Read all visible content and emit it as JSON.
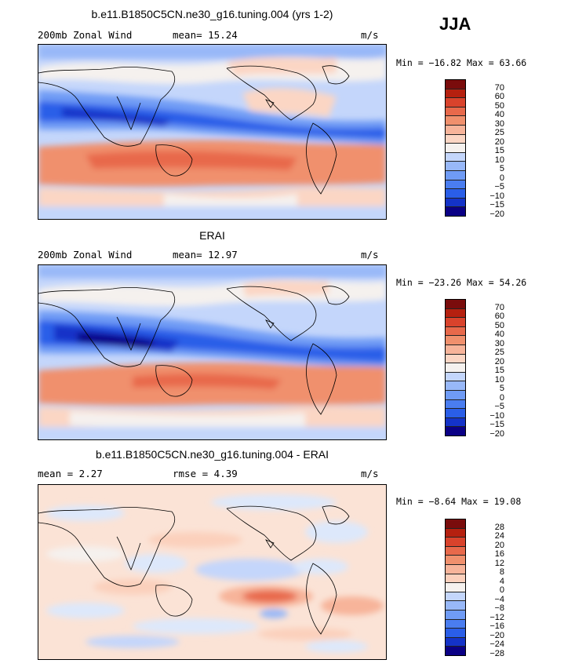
{
  "season_label": "JJA",
  "colors": {
    "abs_scale": [
      "#0a0085",
      "#1433c8",
      "#2a5ee8",
      "#4a7df0",
      "#6f9bf5",
      "#98b8f8",
      "#c4d6fb",
      "#f5f1ee",
      "#fbd6c4",
      "#f7b49a",
      "#f0906d",
      "#e8694b",
      "#d9432c",
      "#b5200f",
      "#7a0c0c"
    ],
    "diff_scale": [
      "#0a0085",
      "#1433c8",
      "#2a5ee8",
      "#4a7df0",
      "#6f9bf5",
      "#98b8f8",
      "#c4d6fb",
      "#dde8fb",
      "#f5f1ee",
      "#fbe3d6",
      "#fbd0bc",
      "#f7b49a",
      "#f0906d",
      "#e8694b",
      "#d9432c",
      "#b5200f",
      "#7a0c0c"
    ]
  },
  "panels": [
    {
      "title": "b.e11.B1850C5CN.ne30_g16.tuning.004 (yrs 1-2)",
      "variable": "200mb Zonal Wind",
      "stat_text": "mean=  15.24",
      "units": "m/s",
      "minmax": "Min = −16.82 Max =  63.66",
      "colorbar_labels": [
        "70",
        "60",
        "50",
        "40",
        "30",
        "25",
        "20",
        "15",
        "10",
        "5",
        "0",
        "−5",
        "−10",
        "−15",
        "−20"
      ],
      "colorbar_values": [
        70,
        60,
        50,
        40,
        30,
        25,
        20,
        15,
        10,
        5,
        0,
        -5,
        -10,
        -15,
        -20
      ]
    },
    {
      "title": "ERAI",
      "variable": "200mb Zonal Wind",
      "stat_text": "mean=  12.97",
      "units": "m/s",
      "minmax": "Min = −23.26 Max =  54.26",
      "colorbar_labels": [
        "70",
        "60",
        "50",
        "40",
        "30",
        "25",
        "20",
        "15",
        "10",
        "5",
        "0",
        "−5",
        "−10",
        "−15",
        "−20"
      ],
      "colorbar_values": [
        70,
        60,
        50,
        40,
        30,
        25,
        20,
        15,
        10,
        5,
        0,
        -5,
        -10,
        -15,
        -20
      ]
    },
    {
      "title": "b.e11.B1850C5CN.ne30_g16.tuning.004 - ERAI",
      "variable": "mean =   2.27",
      "stat_text": "rmse =   4.39",
      "units": "m/s",
      "minmax": "Min =  −8.64  Max =  19.08",
      "colorbar_labels": [
        "28",
        "24",
        "20",
        "16",
        "12",
        "8",
        "4",
        "0",
        "−4",
        "−8",
        "−12",
        "−16",
        "−20",
        "−24",
        "−28"
      ],
      "colorbar_values": [
        28,
        24,
        20,
        16,
        12,
        8,
        4,
        0,
        -4,
        -8,
        -12,
        -16,
        -20,
        -24,
        -28
      ]
    }
  ]
}
